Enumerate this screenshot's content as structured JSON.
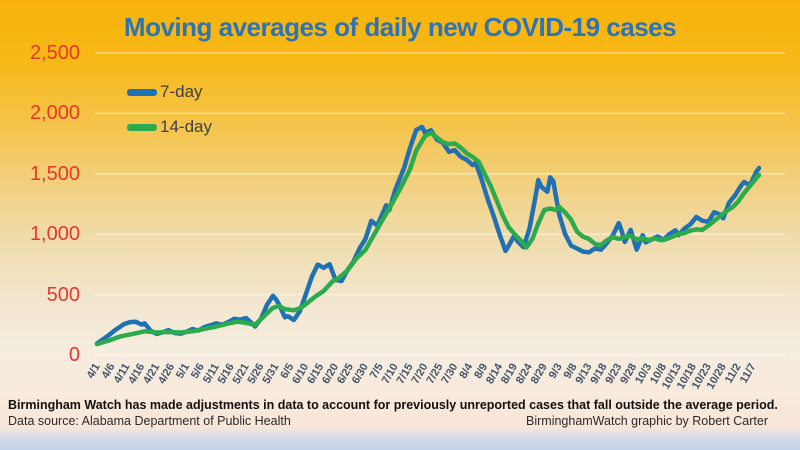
{
  "header": {
    "title": "Moving averages of daily new COVID-19 cases"
  },
  "footer": {
    "note": "Birmingham Watch has made adjustments in data to account for previously unreported cases that fall outside the average period.",
    "source": "Data source: Alabama Department of Public Health",
    "credit": "BirminghamWatch graphic by Robert Carter"
  },
  "colors": {
    "title": "#2E74B5",
    "y_tick_labels": "#E8372C",
    "x_tick_labels": "#44546A",
    "background_top": "#F8B30B",
    "background_bottom_strip": "#C2D1E9",
    "series_7day": "#2070B4",
    "series_14day": "#2BAB4D",
    "gridline": "rgba(255,255,255,0.55)"
  },
  "chart_data": {
    "type": "line",
    "title": "Moving averages of daily new COVID-19 cases",
    "xlabel": "",
    "ylabel": "",
    "ylim": [
      0,
      2500
    ],
    "grid": "horizontal only",
    "legend_position": "top-left inside plot",
    "x_unit": "day index, 0 = 4/1, one point per day, ticks every 5 days",
    "x_tick_days": [
      0,
      5,
      10,
      15,
      20,
      25,
      30,
      35,
      40,
      45,
      50,
      55,
      60,
      65,
      70,
      75,
      80,
      85,
      90,
      95,
      100,
      105,
      110,
      115,
      120,
      125,
      130,
      135,
      140,
      145,
      150,
      155,
      160,
      165,
      170,
      175,
      180,
      185,
      190,
      195,
      200,
      205,
      210,
      215,
      220
    ],
    "x_tick_labels": [
      "4/1",
      "4/6",
      "4/11",
      "4/16",
      "4/21",
      "4/26",
      "5/1",
      "5/6",
      "5/11",
      "5/16",
      "5/21",
      "5/26",
      "5/31",
      "6/5",
      "6/10",
      "6/15",
      "6/20",
      "6/25",
      "6/30",
      "7/5",
      "7/10",
      "7/15",
      "7/20",
      "7/25",
      "7/30",
      "8/4",
      "8/9",
      "8/14",
      "8/19",
      "8/24",
      "8/29",
      "9/3",
      "9/8",
      "9/13",
      "9/18",
      "9/23",
      "9/28",
      "10/3",
      "10/8",
      "10/13",
      "10/18",
      "10/23",
      "10/28",
      "11/2",
      "11/7"
    ],
    "y_ticks": [
      0,
      500,
      1000,
      1500,
      2000,
      2500
    ],
    "y_tick_labels": [
      "0",
      "500",
      "1,000",
      "1,500",
      "2,000",
      "2,500"
    ],
    "series": [
      {
        "name": "7-day",
        "color": "#2070B4",
        "points": [
          [
            0,
            95
          ],
          [
            2,
            130
          ],
          [
            4,
            165
          ],
          [
            6,
            205
          ],
          [
            9,
            255
          ],
          [
            11,
            272
          ],
          [
            13,
            275
          ],
          [
            15,
            252
          ],
          [
            16,
            262
          ],
          [
            18,
            200
          ],
          [
            20,
            175
          ],
          [
            22,
            188
          ],
          [
            24,
            206
          ],
          [
            26,
            182
          ],
          [
            28,
            176
          ],
          [
            30,
            192
          ],
          [
            32,
            215
          ],
          [
            34,
            202
          ],
          [
            36,
            230
          ],
          [
            38,
            246
          ],
          [
            40,
            262
          ],
          [
            42,
            250
          ],
          [
            44,
            272
          ],
          [
            46,
            300
          ],
          [
            48,
            292
          ],
          [
            50,
            306
          ],
          [
            52,
            262
          ],
          [
            53,
            236
          ],
          [
            55,
            300
          ],
          [
            57,
            415
          ],
          [
            59,
            490
          ],
          [
            60,
            462
          ],
          [
            61,
            420
          ],
          [
            63,
            312
          ],
          [
            64,
            322
          ],
          [
            66,
            290
          ],
          [
            68,
            362
          ],
          [
            70,
            500
          ],
          [
            72,
            645
          ],
          [
            74,
            748
          ],
          [
            76,
            722
          ],
          [
            78,
            752
          ],
          [
            80,
            622
          ],
          [
            82,
            612
          ],
          [
            84,
            702
          ],
          [
            86,
            772
          ],
          [
            88,
            880
          ],
          [
            90,
            960
          ],
          [
            92,
            1110
          ],
          [
            94,
            1072
          ],
          [
            97,
            1240
          ],
          [
            98,
            1198
          ],
          [
            100,
            1365
          ],
          [
            103,
            1550
          ],
          [
            105,
            1715
          ],
          [
            107,
            1862
          ],
          [
            109,
            1888
          ],
          [
            110,
            1840
          ],
          [
            112,
            1860
          ],
          [
            114,
            1782
          ],
          [
            116,
            1756
          ],
          [
            118,
            1682
          ],
          [
            120,
            1695
          ],
          [
            122,
            1640
          ],
          [
            124,
            1616
          ],
          [
            126,
            1572
          ],
          [
            127,
            1590
          ],
          [
            129,
            1452
          ],
          [
            131,
            1292
          ],
          [
            133,
            1152
          ],
          [
            135,
            1002
          ],
          [
            137,
            862
          ],
          [
            138,
            902
          ],
          [
            140,
            992
          ],
          [
            141,
            942
          ],
          [
            143,
            892
          ],
          [
            145,
            1042
          ],
          [
            147,
            1302
          ],
          [
            148,
            1448
          ],
          [
            149,
            1392
          ],
          [
            151,
            1352
          ],
          [
            152,
            1470
          ],
          [
            153,
            1440
          ],
          [
            155,
            1162
          ],
          [
            157,
            1002
          ],
          [
            159,
            906
          ],
          [
            161,
            882
          ],
          [
            163,
            856
          ],
          [
            165,
            850
          ],
          [
            167,
            882
          ],
          [
            169,
            872
          ],
          [
            171,
            926
          ],
          [
            173,
            992
          ],
          [
            175,
            1092
          ],
          [
            176,
            1022
          ],
          [
            177,
            936
          ],
          [
            179,
            1036
          ],
          [
            181,
            872
          ],
          [
            183,
            992
          ],
          [
            184,
            932
          ],
          [
            186,
            956
          ],
          [
            188,
            982
          ],
          [
            190,
            952
          ],
          [
            192,
            1002
          ],
          [
            194,
            1032
          ],
          [
            195,
            992
          ],
          [
            197,
            1046
          ],
          [
            199,
            1082
          ],
          [
            201,
            1142
          ],
          [
            203,
            1112
          ],
          [
            205,
            1102
          ],
          [
            207,
            1182
          ],
          [
            209,
            1162
          ],
          [
            210,
            1132
          ],
          [
            212,
            1262
          ],
          [
            214,
            1322
          ],
          [
            216,
            1402
          ],
          [
            217,
            1432
          ],
          [
            219,
            1406
          ],
          [
            221,
            1512
          ],
          [
            222,
            1548
          ]
        ]
      },
      {
        "name": "14-day",
        "color": "#2BAB4D",
        "points": [
          [
            0,
            90
          ],
          [
            4,
            120
          ],
          [
            8,
            155
          ],
          [
            12,
            175
          ],
          [
            16,
            196
          ],
          [
            20,
            186
          ],
          [
            24,
            190
          ],
          [
            28,
            186
          ],
          [
            32,
            196
          ],
          [
            36,
            216
          ],
          [
            40,
            236
          ],
          [
            44,
            260
          ],
          [
            47,
            276
          ],
          [
            50,
            266
          ],
          [
            53,
            250
          ],
          [
            56,
            320
          ],
          [
            59,
            390
          ],
          [
            61,
            406
          ],
          [
            63,
            380
          ],
          [
            66,
            370
          ],
          [
            68,
            386
          ],
          [
            70,
            420
          ],
          [
            73,
            480
          ],
          [
            76,
            530
          ],
          [
            79,
            610
          ],
          [
            81,
            636
          ],
          [
            84,
            700
          ],
          [
            87,
            800
          ],
          [
            90,
            870
          ],
          [
            93,
            1000
          ],
          [
            96,
            1130
          ],
          [
            99,
            1256
          ],
          [
            102,
            1390
          ],
          [
            105,
            1540
          ],
          [
            107,
            1690
          ],
          [
            110,
            1812
          ],
          [
            112,
            1840
          ],
          [
            114,
            1800
          ],
          [
            116,
            1762
          ],
          [
            118,
            1746
          ],
          [
            120,
            1752
          ],
          [
            122,
            1716
          ],
          [
            124,
            1670
          ],
          [
            126,
            1640
          ],
          [
            128,
            1600
          ],
          [
            130,
            1500
          ],
          [
            132,
            1400
          ],
          [
            134,
            1280
          ],
          [
            136,
            1160
          ],
          [
            138,
            1060
          ],
          [
            140,
            1000
          ],
          [
            142,
            950
          ],
          [
            144,
            890
          ],
          [
            146,
            960
          ],
          [
            148,
            1090
          ],
          [
            150,
            1200
          ],
          [
            152,
            1212
          ],
          [
            154,
            1200
          ],
          [
            155,
            1226
          ],
          [
            157,
            1180
          ],
          [
            159,
            1120
          ],
          [
            161,
            1020
          ],
          [
            163,
            980
          ],
          [
            165,
            960
          ],
          [
            167,
            920
          ],
          [
            169,
            910
          ],
          [
            171,
            950
          ],
          [
            173,
            976
          ],
          [
            175,
            960
          ],
          [
            177,
            976
          ],
          [
            179,
            986
          ],
          [
            181,
            956
          ],
          [
            183,
            966
          ],
          [
            185,
            950
          ],
          [
            187,
            966
          ],
          [
            189,
            950
          ],
          [
            191,
            960
          ],
          [
            193,
            980
          ],
          [
            195,
            1000
          ],
          [
            197,
            1010
          ],
          [
            199,
            1030
          ],
          [
            201,
            1040
          ],
          [
            203,
            1036
          ],
          [
            205,
            1070
          ],
          [
            207,
            1110
          ],
          [
            209,
            1150
          ],
          [
            211,
            1190
          ],
          [
            213,
            1220
          ],
          [
            215,
            1270
          ],
          [
            217,
            1340
          ],
          [
            219,
            1400
          ],
          [
            221,
            1460
          ],
          [
            222,
            1490
          ]
        ]
      }
    ]
  }
}
